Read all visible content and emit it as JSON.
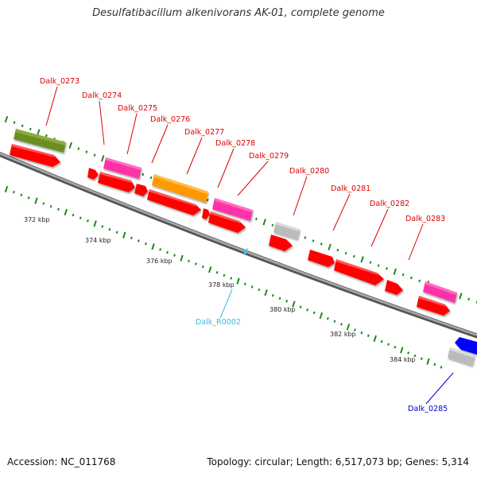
{
  "title": "Desulfatibacillum alkenivorans AK-01, complete genome",
  "footer": {
    "accession": "Accession: NC_011768",
    "summary": "Topology: circular; Length: 6,517,073 bp; Genes: 5,314"
  },
  "scale_labels": [
    "372 kbp",
    "374 kbp",
    "376 kbp",
    "378 kbp",
    "380 kbp",
    "382 kbp",
    "384 kbp"
  ],
  "gene_labels": [
    {
      "id": "Dalk_0273",
      "color": "#dd0000"
    },
    {
      "id": "Dalk_0274",
      "color": "#dd0000"
    },
    {
      "id": "Dalk_0275",
      "color": "#dd0000"
    },
    {
      "id": "Dalk_0276",
      "color": "#dd0000"
    },
    {
      "id": "Dalk_0277",
      "color": "#dd0000"
    },
    {
      "id": "Dalk_0278",
      "color": "#dd0000"
    },
    {
      "id": "Dalk_0279",
      "color": "#dd0000"
    },
    {
      "id": "Dalk_0280",
      "color": "#dd0000"
    },
    {
      "id": "Dalk_0281",
      "color": "#dd0000"
    },
    {
      "id": "Dalk_0282",
      "color": "#dd0000"
    },
    {
      "id": "Dalk_0283",
      "color": "#dd0000"
    },
    {
      "id": "Dalk_R0002",
      "color": "#33bbdd"
    },
    {
      "id": "Dalk_0285",
      "color": "#0000cc"
    }
  ],
  "colors": {
    "backbone": "#7f7f7f",
    "scale_dots": "#1a8a1a",
    "cds": "#ff0000",
    "olive": "#6b8e23",
    "magenta": "#ff33aa",
    "orange": "#ff9900",
    "grey": "#bbbbbb",
    "blue": "#0000ff",
    "rna": "#33ccee"
  }
}
